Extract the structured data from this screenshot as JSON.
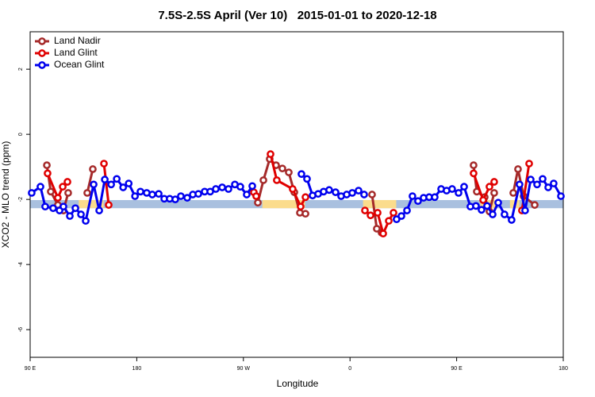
{
  "chart_data": {
    "type": "line",
    "title": "7.5S-2.5S April (Ver 10)   2015-01-01 to 2020-12-18",
    "x_label": "Longitude",
    "y_label": "XCO2 - MLO trend (ppm)",
    "xlim": [
      90,
      540
    ],
    "ylim": [
      -6.85,
      3.15
    ],
    "xticks": [
      {
        "value": 90,
        "label": "90 E"
      },
      {
        "value": 180,
        "label": "180"
      },
      {
        "value": 270,
        "label": "90 W"
      },
      {
        "value": 360,
        "label": "0"
      },
      {
        "value": 450,
        "label": "90 E"
      },
      {
        "value": 540,
        "label": "180"
      }
    ],
    "yticks": [
      2,
      0,
      -2,
      -4,
      -6
    ],
    "legend": "top-left",
    "shade": {
      "ylim": [
        -2.27,
        -2.02
      ],
      "color": "#a9c0df",
      "span_color": "#fbdc8c",
      "spans": [
        [
          131,
          152
        ],
        [
          286,
          322
        ],
        [
          371,
          399
        ],
        [
          470,
          484
        ],
        [
          495,
          503
        ]
      ]
    },
    "series": [
      {
        "name": "Land Nadir",
        "color": "#a52a2a",
        "x": [
          104.1,
          107.4,
          113.4,
          118.1,
          122.1,
          null,
          138.2,
          142.9,
          null,
          282.2,
          286.9,
          292.2,
          297.6,
          302.9,
          308.3,
          313.0,
          317.7,
          322.4,
          null,
          378.6,
          382.6,
          386.6,
          null,
          464.3,
          467.0,
          473.7,
          477.7,
          481.7,
          null,
          497.8,
          501.8,
          506.5,
          515.9
        ],
        "values": [
          -0.95,
          -1.76,
          -2.17,
          -2.34,
          -1.8,
          null,
          -1.8,
          -1.07,
          null,
          -2.1,
          -1.41,
          -0.76,
          -0.95,
          -1.05,
          -1.17,
          -1.78,
          -2.41,
          -2.44,
          null,
          -1.85,
          -2.9,
          -3.02,
          null,
          -0.95,
          -1.76,
          -1.93,
          -2.37,
          -1.8,
          null,
          -1.8,
          -1.07,
          -1.9,
          -2.17
        ]
      },
      {
        "name": "Land Glint",
        "color": "#e00000",
        "x": [
          104.7,
          113.4,
          117.5,
          121.5,
          null,
          152.3,
          156.3,
          null,
          278.8,
          280.8,
          null,
          292.9,
          298.2,
          311.6,
          318.3,
          322.4,
          null,
          372.6,
          377.3,
          383.3,
          388.0,
          392.7,
          396.7,
          null,
          464.3,
          472.4,
          477.7,
          481.7,
          null,
          505.1,
          511.2
        ],
        "values": [
          -1.2,
          -1.95,
          -1.61,
          -1.46,
          null,
          -0.9,
          -2.17,
          null,
          -1.78,
          -1.9,
          null,
          -0.61,
          -1.41,
          -1.68,
          -2.22,
          -1.93,
          null,
          -2.34,
          -2.49,
          -2.41,
          -3.05,
          -2.66,
          -2.41,
          null,
          -1.2,
          -2.02,
          -1.61,
          -1.46,
          null,
          -2.34,
          -0.9
        ]
      },
      {
        "name": "Ocean Glint",
        "color": "#0000ee",
        "x": [
          91.3,
          98.7,
          102.7,
          109.4,
          114.8,
          118.1,
          123.5,
          128.2,
          132.9,
          136.9,
          143.6,
          148.3,
          153.0,
          158.4,
          163.1,
          168.5,
          173.2,
          178.5,
          183.1,
          188.4,
          193.1,
          198.5,
          203.2,
          207.8,
          212.5,
          217.2,
          222.6,
          227.3,
          232.0,
          237.3,
          242.0,
          246.7,
          252.1,
          257.4,
          262.8,
          267.4,
          272.8,
          277.5,
          null,
          319.0,
          323.7,
          328.4,
          333.1,
          337.7,
          342.4,
          347.8,
          352.5,
          357.2,
          361.9,
          367.2,
          371.9,
          null,
          399.3,
          403.4,
          408.1,
          412.7,
          417.4,
          422.1,
          426.8,
          431.5,
          436.9,
          441.5,
          446.2,
          451.6,
          456.3,
          461.6,
          466.3,
          471.0,
          475.7,
          480.4,
          485.1,
          490.4,
          496.4,
          503.1,
          507.8,
          512.5,
          517.9,
          522.6,
          527.3,
          531.9,
          538.0
        ],
        "values": [
          -1.8,
          -1.61,
          -2.22,
          -2.27,
          -2.34,
          -2.22,
          -2.51,
          -2.27,
          -2.46,
          -2.66,
          -1.54,
          -2.34,
          -1.39,
          -1.54,
          -1.37,
          -1.63,
          -1.51,
          -1.9,
          -1.76,
          -1.8,
          -1.85,
          -1.83,
          -1.98,
          -1.98,
          -2.0,
          -1.9,
          -1.95,
          -1.85,
          -1.83,
          -1.76,
          -1.76,
          -1.68,
          -1.63,
          -1.68,
          -1.54,
          -1.61,
          -1.85,
          -1.59,
          null,
          -1.22,
          -1.37,
          -1.88,
          -1.83,
          -1.76,
          -1.71,
          -1.78,
          -1.9,
          -1.85,
          -1.8,
          -1.73,
          -1.85,
          null,
          -2.61,
          -2.51,
          -2.34,
          -1.9,
          -2.05,
          -1.95,
          -1.93,
          -1.93,
          -1.68,
          -1.73,
          -1.68,
          -1.8,
          -1.61,
          -2.22,
          -2.2,
          -2.32,
          -2.2,
          -2.46,
          -2.1,
          -2.46,
          -2.63,
          -1.54,
          -2.34,
          -1.39,
          -1.54,
          -1.37,
          -1.63,
          -1.51,
          -1.9
        ]
      }
    ]
  }
}
